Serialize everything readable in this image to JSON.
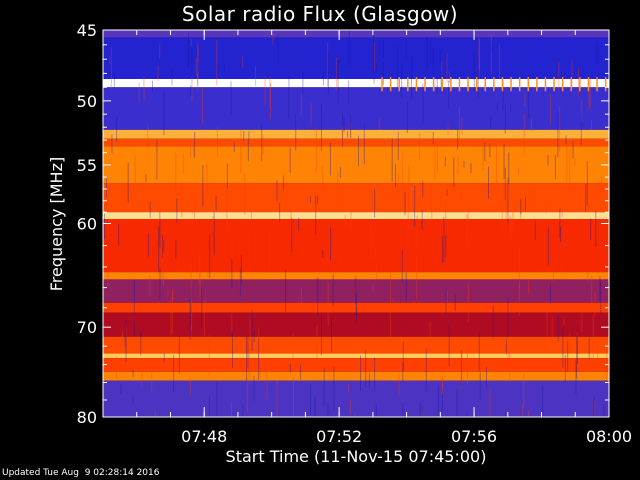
{
  "chart_data": {
    "type": "heatmap",
    "title": "Solar radio Flux (Glasgow)",
    "xlabel": "Start Time (11-Nov-15 07:45:00)",
    "ylabel": "Frequency [MHz]",
    "xlim": [
      "07:45:00",
      "08:00:00"
    ],
    "ylim": [
      45,
      80
    ],
    "y_scale": "log",
    "x_ticks": [
      "07:48",
      "07:52",
      "07:56",
      "08:00"
    ],
    "y_ticks": [
      45,
      50,
      55,
      60,
      70,
      80
    ],
    "colormap": [
      "#0000a8",
      "#2a2ad8",
      "#6a3ab0",
      "#c00000",
      "#ff3000",
      "#ff8000",
      "#ffd060",
      "#ffffff"
    ],
    "band_intensities": [
      {
        "mhz_from": 45.0,
        "mhz_to": 45.5,
        "level": 0.25
      },
      {
        "mhz_from": 45.5,
        "mhz_to": 48.4,
        "level": 0.12
      },
      {
        "mhz_from": 48.4,
        "mhz_to": 49.0,
        "level": 1.0
      },
      {
        "mhz_from": 49.0,
        "mhz_to": 52.2,
        "level": 0.18
      },
      {
        "mhz_from": 52.2,
        "mhz_to": 52.9,
        "level": 0.8
      },
      {
        "mhz_from": 52.9,
        "mhz_to": 53.5,
        "level": 0.62
      },
      {
        "mhz_from": 53.5,
        "mhz_to": 56.5,
        "level": 0.72
      },
      {
        "mhz_from": 56.5,
        "mhz_to": 59.0,
        "level": 0.62
      },
      {
        "mhz_from": 59.0,
        "mhz_to": 59.6,
        "level": 0.9
      },
      {
        "mhz_from": 59.6,
        "mhz_to": 64.5,
        "level": 0.55
      },
      {
        "mhz_from": 64.5,
        "mhz_to": 65.2,
        "level": 0.72
      },
      {
        "mhz_from": 65.2,
        "mhz_to": 67.5,
        "level": 0.35
      },
      {
        "mhz_from": 67.5,
        "mhz_to": 68.5,
        "level": 0.6
      },
      {
        "mhz_from": 68.5,
        "mhz_to": 71.0,
        "level": 0.4
      },
      {
        "mhz_from": 71.0,
        "mhz_to": 72.8,
        "level": 0.62
      },
      {
        "mhz_from": 72.8,
        "mhz_to": 73.3,
        "level": 0.85
      },
      {
        "mhz_from": 73.3,
        "mhz_to": 74.8,
        "level": 0.6
      },
      {
        "mhz_from": 74.8,
        "mhz_to": 75.8,
        "level": 0.72
      },
      {
        "mhz_from": 75.8,
        "mhz_to": 80.0,
        "level": 0.22
      }
    ]
  },
  "footer": {
    "updated": "Updated Tue Aug  9 02:28:14 2016"
  }
}
